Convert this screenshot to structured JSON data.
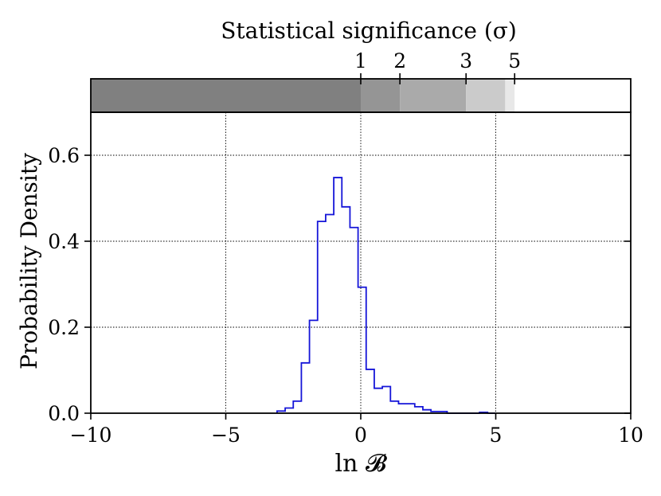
{
  "chart_data": {
    "type": "histogram",
    "xlabel": "ln 𝓑",
    "ylabel": "Probability Density",
    "xlim": [
      -10,
      10
    ],
    "ylim": [
      0,
      0.7
    ],
    "xticks": [
      -10,
      -5,
      0,
      5,
      10
    ],
    "xtick_labels": [
      "−10",
      "−5",
      "0",
      "5",
      "10"
    ],
    "yticks": [
      0.0,
      0.2,
      0.4,
      0.6
    ],
    "ytick_labels": [
      "0.0",
      "0.2",
      "0.4",
      "0.6"
    ],
    "grid": "dotted",
    "series": [
      {
        "color": "#1515d8",
        "bin_width": 0.3,
        "bin_edges": [
          -3.1,
          -2.8,
          -2.5,
          -2.2,
          -1.9,
          -1.6,
          -1.3,
          -1.0,
          -0.7,
          -0.4,
          -0.1,
          0.2,
          0.5,
          0.8,
          1.1,
          1.4,
          1.7,
          2.0,
          2.3,
          2.6,
          2.9,
          3.2,
          3.5,
          3.8,
          4.1,
          4.4,
          4.7,
          5.0
        ],
        "values": [
          0.005,
          0.012,
          0.028,
          0.117,
          0.216,
          0.446,
          0.462,
          0.548,
          0.48,
          0.432,
          0.293,
          0.102,
          0.058,
          0.062,
          0.028,
          0.022,
          0.022,
          0.015,
          0.008,
          0.004,
          0.004,
          0.0,
          0.0,
          0.0,
          0.0,
          0.002,
          0.0
        ]
      }
    ],
    "significance_axis": {
      "label": "Statistical significance (σ)",
      "tick_labels": [
        "1",
        "2",
        "3",
        "5"
      ],
      "tick_positions_lnB": [
        0.0,
        1.45,
        3.9,
        5.7
      ],
      "bands": [
        {
          "from": -10,
          "to": 0.0,
          "color": "#808080"
        },
        {
          "from": 0.0,
          "to": 1.45,
          "color": "#959595"
        },
        {
          "from": 1.45,
          "to": 3.9,
          "color": "#aaaaaa"
        },
        {
          "from": 3.9,
          "to": 5.35,
          "color": "#cbcbcb"
        },
        {
          "from": 5.35,
          "to": 5.7,
          "color": "#e8e8e8"
        },
        {
          "from": 5.7,
          "to": 10,
          "color": "#ffffff"
        }
      ]
    }
  }
}
